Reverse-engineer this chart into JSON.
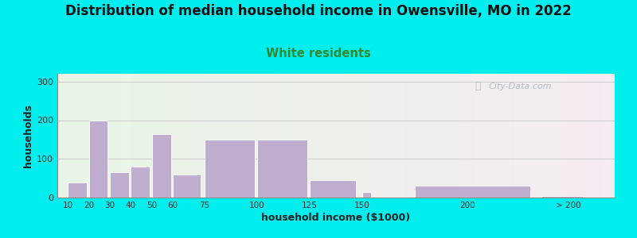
{
  "title": "Distribution of median household income in Owensville, MO in 2022",
  "subtitle": "White residents",
  "xlabel": "household income ($1000)",
  "ylabel": "households",
  "title_fontsize": 12,
  "subtitle_fontsize": 10.5,
  "subtitle_color": "#338833",
  "bar_color": "#c0aed0",
  "background_outer": "#00eeee",
  "ylim": [
    0,
    320
  ],
  "yticks": [
    0,
    100,
    200,
    300
  ],
  "xtick_positions": [
    10,
    20,
    30,
    40,
    50,
    60,
    75,
    100,
    125,
    150,
    200,
    248
  ],
  "xtick_labels": [
    "10",
    "20",
    "30",
    "40",
    "50",
    "60",
    "75",
    "100",
    "125",
    "150",
    "200",
    "> 200"
  ],
  "bar_lefts": [
    10,
    20,
    30,
    40,
    50,
    60,
    75,
    100,
    125,
    150,
    175,
    235
  ],
  "bar_widths": [
    9,
    9,
    9,
    9,
    9,
    13,
    24,
    24,
    22,
    4,
    55,
    20
  ],
  "values": [
    40,
    200,
    65,
    80,
    165,
    60,
    150,
    150,
    45,
    15,
    30,
    5
  ],
  "watermark_text": "City-Data.com",
  "watermark_color": "#a8b8c0",
  "xlim": [
    5,
    270
  ]
}
